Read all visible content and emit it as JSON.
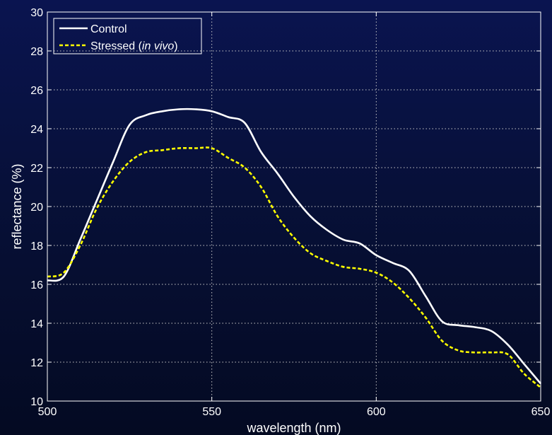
{
  "chart_data": {
    "type": "line",
    "xlabel": "wavelength (nm)",
    "ylabel": "reflectance (%)",
    "xlim": [
      500,
      650
    ],
    "ylim": [
      10,
      30
    ],
    "xticks": [
      500,
      550,
      600,
      650
    ],
    "yticks": [
      10,
      12,
      14,
      16,
      18,
      20,
      22,
      24,
      26,
      28,
      30
    ],
    "grid": true,
    "legend_position": "top-left",
    "colors": {
      "axes": "#ffffff",
      "grid": "#c8c8c8"
    },
    "series": [
      {
        "name": "Control",
        "color": "#ffffff",
        "dash": "solid",
        "x": [
          500,
          505,
          510,
          515,
          520,
          525,
          530,
          535,
          540,
          545,
          550,
          555,
          560,
          565,
          570,
          575,
          580,
          585,
          590,
          595,
          600,
          605,
          610,
          615,
          620,
          625,
          630,
          635,
          640,
          645,
          650
        ],
        "y": [
          16.2,
          16.4,
          18.3,
          20.3,
          22.3,
          24.2,
          24.7,
          24.9,
          25.0,
          25.0,
          24.9,
          24.6,
          24.3,
          22.8,
          21.7,
          20.5,
          19.5,
          18.8,
          18.3,
          18.1,
          17.5,
          17.1,
          16.7,
          15.4,
          14.1,
          13.9,
          13.8,
          13.6,
          12.9,
          11.9,
          10.9
        ]
      },
      {
        "name": "Stressed (in vivo)",
        "name_plain": "Stressed (",
        "name_italic": "in vivo",
        "name_suffix": ")",
        "color": "#ffff00",
        "dash": "dashed",
        "x": [
          500,
          505,
          510,
          515,
          520,
          525,
          530,
          535,
          540,
          545,
          550,
          555,
          560,
          565,
          570,
          575,
          580,
          585,
          590,
          595,
          600,
          605,
          610,
          615,
          620,
          625,
          630,
          635,
          640,
          645,
          650
        ],
        "y": [
          16.4,
          16.6,
          18.0,
          19.9,
          21.3,
          22.3,
          22.8,
          22.9,
          23.0,
          23.0,
          23.0,
          22.5,
          22.0,
          21.0,
          19.5,
          18.4,
          17.6,
          17.2,
          16.9,
          16.8,
          16.6,
          16.1,
          15.3,
          14.3,
          13.1,
          12.6,
          12.5,
          12.5,
          12.4,
          11.4,
          10.7
        ]
      }
    ]
  }
}
